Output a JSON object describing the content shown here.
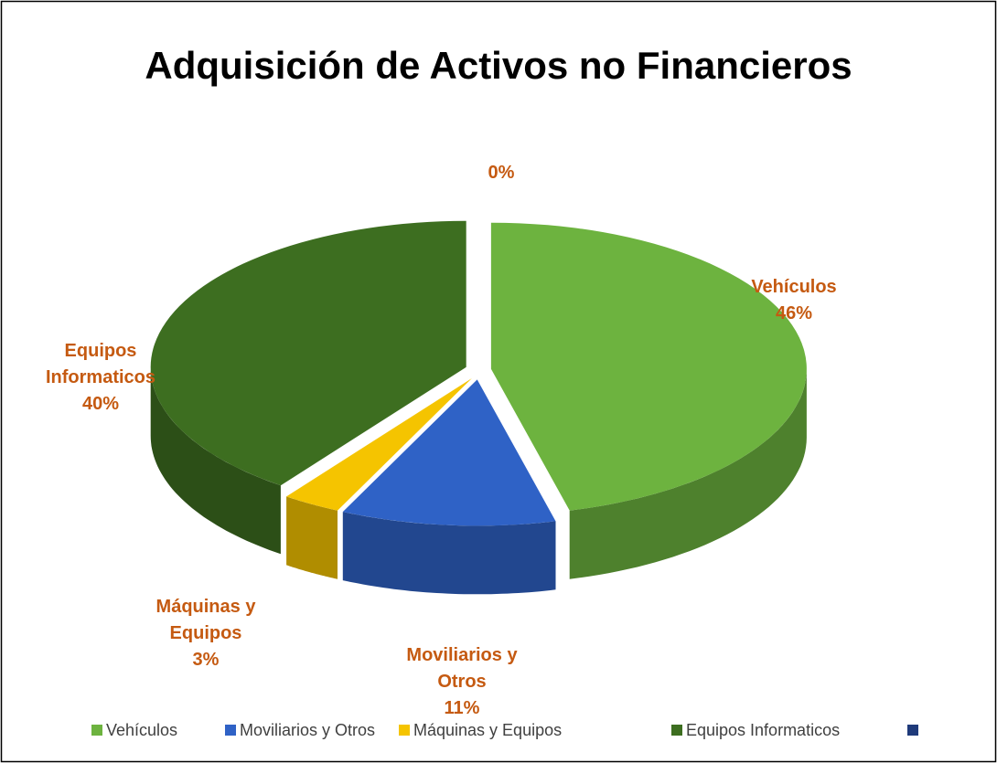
{
  "chart_data": {
    "type": "pie3d",
    "title": "Adquisición de Activos no Financieros",
    "categories": [
      "Vehículos",
      "Moviliarios y Otros",
      "Máquinas y Equipos",
      "Equipos Informaticos",
      null
    ],
    "values": [
      46,
      11,
      3,
      40,
      0
    ],
    "value_labels": [
      "46%",
      "11%",
      "3%",
      "40%",
      "0%"
    ],
    "colors": [
      "#6db33f",
      "#2f62c6",
      "#f5c400",
      "#3d6e20",
      "#1f3a7a"
    ],
    "legend": "bottom"
  }
}
